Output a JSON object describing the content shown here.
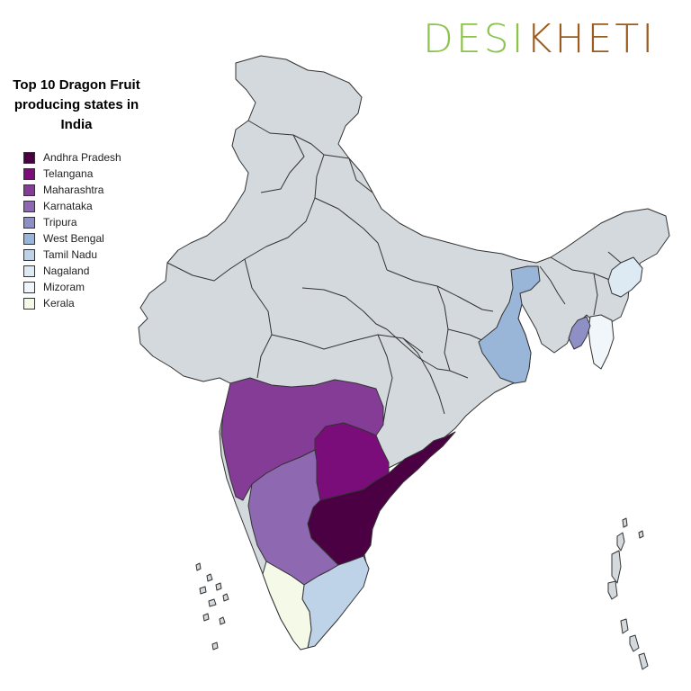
{
  "logo": {
    "part1": "DESI",
    "part2": "KHETI"
  },
  "title": "Top 10 Dragon Fruit producing states in India",
  "legend": [
    {
      "label": "Andhra Pradesh",
      "color": "#4b0044"
    },
    {
      "label": "Telangana",
      "color": "#7b0d7b"
    },
    {
      "label": "Maharashtra",
      "color": "#843c96"
    },
    {
      "label": "Karnataka",
      "color": "#8e68b0"
    },
    {
      "label": "Tripura",
      "color": "#8e8fc4"
    },
    {
      "label": "West Bengal",
      "color": "#99b5d8"
    },
    {
      "label": "Tamil Nadu",
      "color": "#bed3e7"
    },
    {
      "label": "Nagaland",
      "color": "#dde9f3"
    },
    {
      "label": "Mizoram",
      "color": "#f0f6fa"
    },
    {
      "label": "Kerala",
      "color": "#f4f9e8"
    }
  ],
  "other_state_color": "#d3d9dd"
}
